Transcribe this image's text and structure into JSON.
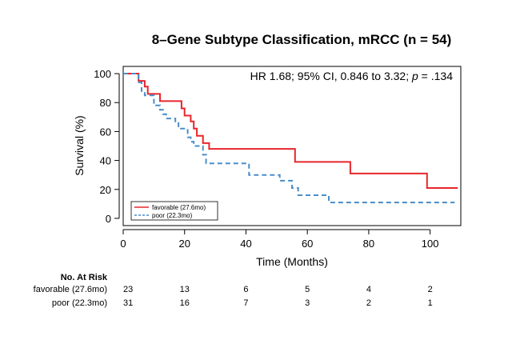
{
  "chart_data": {
    "type": "line",
    "title": "8–Gene Subtype Classification, mRCC (n = 54)",
    "xlabel": "Time (Months)",
    "ylabel": "Survival (%)",
    "xlim": [
      0,
      110
    ],
    "ylim": [
      -5,
      105
    ],
    "xticks": [
      0,
      20,
      40,
      60,
      80,
      100
    ],
    "yticks": [
      0,
      20,
      40,
      60,
      80,
      100
    ],
    "grid": false,
    "annotation": {
      "text": "HR 1.68; 95% CI, 0.846 to 3.32; ",
      "p_label": "p",
      "p_value": " = .134"
    },
    "legend_position": "bottom-left",
    "series": [
      {
        "name": "favorable (27.6mo)",
        "color": "#e8262c",
        "style": "solid",
        "steps": [
          [
            0,
            100
          ],
          [
            4,
            100
          ],
          [
            5,
            95
          ],
          [
            7,
            91
          ],
          [
            8,
            86
          ],
          [
            11,
            86
          ],
          [
            12,
            81
          ],
          [
            18,
            81
          ],
          [
            19,
            76
          ],
          [
            20,
            71
          ],
          [
            21,
            71
          ],
          [
            22,
            67
          ],
          [
            23,
            62
          ],
          [
            24,
            57
          ],
          [
            25,
            57
          ],
          [
            26,
            52
          ],
          [
            27,
            52
          ],
          [
            28,
            48
          ],
          [
            55,
            48
          ],
          [
            56,
            39
          ],
          [
            73,
            39
          ],
          [
            74,
            31
          ],
          [
            98,
            31
          ],
          [
            99,
            21
          ],
          [
            109,
            21
          ]
        ]
      },
      {
        "name": "poor (22.3mo)",
        "color": "#4a8ec8",
        "style": "dashed",
        "steps": [
          [
            0,
            100
          ],
          [
            4,
            100
          ],
          [
            5,
            94
          ],
          [
            6,
            88
          ],
          [
            7,
            85
          ],
          [
            9,
            85
          ],
          [
            10,
            78
          ],
          [
            12,
            75
          ],
          [
            13,
            72
          ],
          [
            14,
            69
          ],
          [
            16,
            69
          ],
          [
            17,
            66
          ],
          [
            18,
            62
          ],
          [
            20,
            62
          ],
          [
            21,
            56
          ],
          [
            22,
            53
          ],
          [
            23,
            50
          ],
          [
            25,
            50
          ],
          [
            26,
            44
          ],
          [
            27,
            38
          ],
          [
            40,
            38
          ],
          [
            41,
            30
          ],
          [
            50,
            30
          ],
          [
            51,
            26
          ],
          [
            54,
            26
          ],
          [
            55,
            21
          ],
          [
            57,
            16
          ],
          [
            64,
            16
          ],
          [
            67,
            11
          ],
          [
            108,
            11
          ]
        ]
      }
    ],
    "at_risk": {
      "header": "No. At Risk",
      "times": [
        0,
        20,
        40,
        60,
        80,
        100
      ],
      "rows": [
        {
          "label": "favorable (27.6mo)",
          "values": [
            "23",
            "13",
            "6",
            "5",
            "4",
            "2"
          ]
        },
        {
          "label": "poor (22.3mo)",
          "values": [
            "31",
            "16",
            "7",
            "3",
            "2",
            "1"
          ]
        }
      ]
    }
  }
}
